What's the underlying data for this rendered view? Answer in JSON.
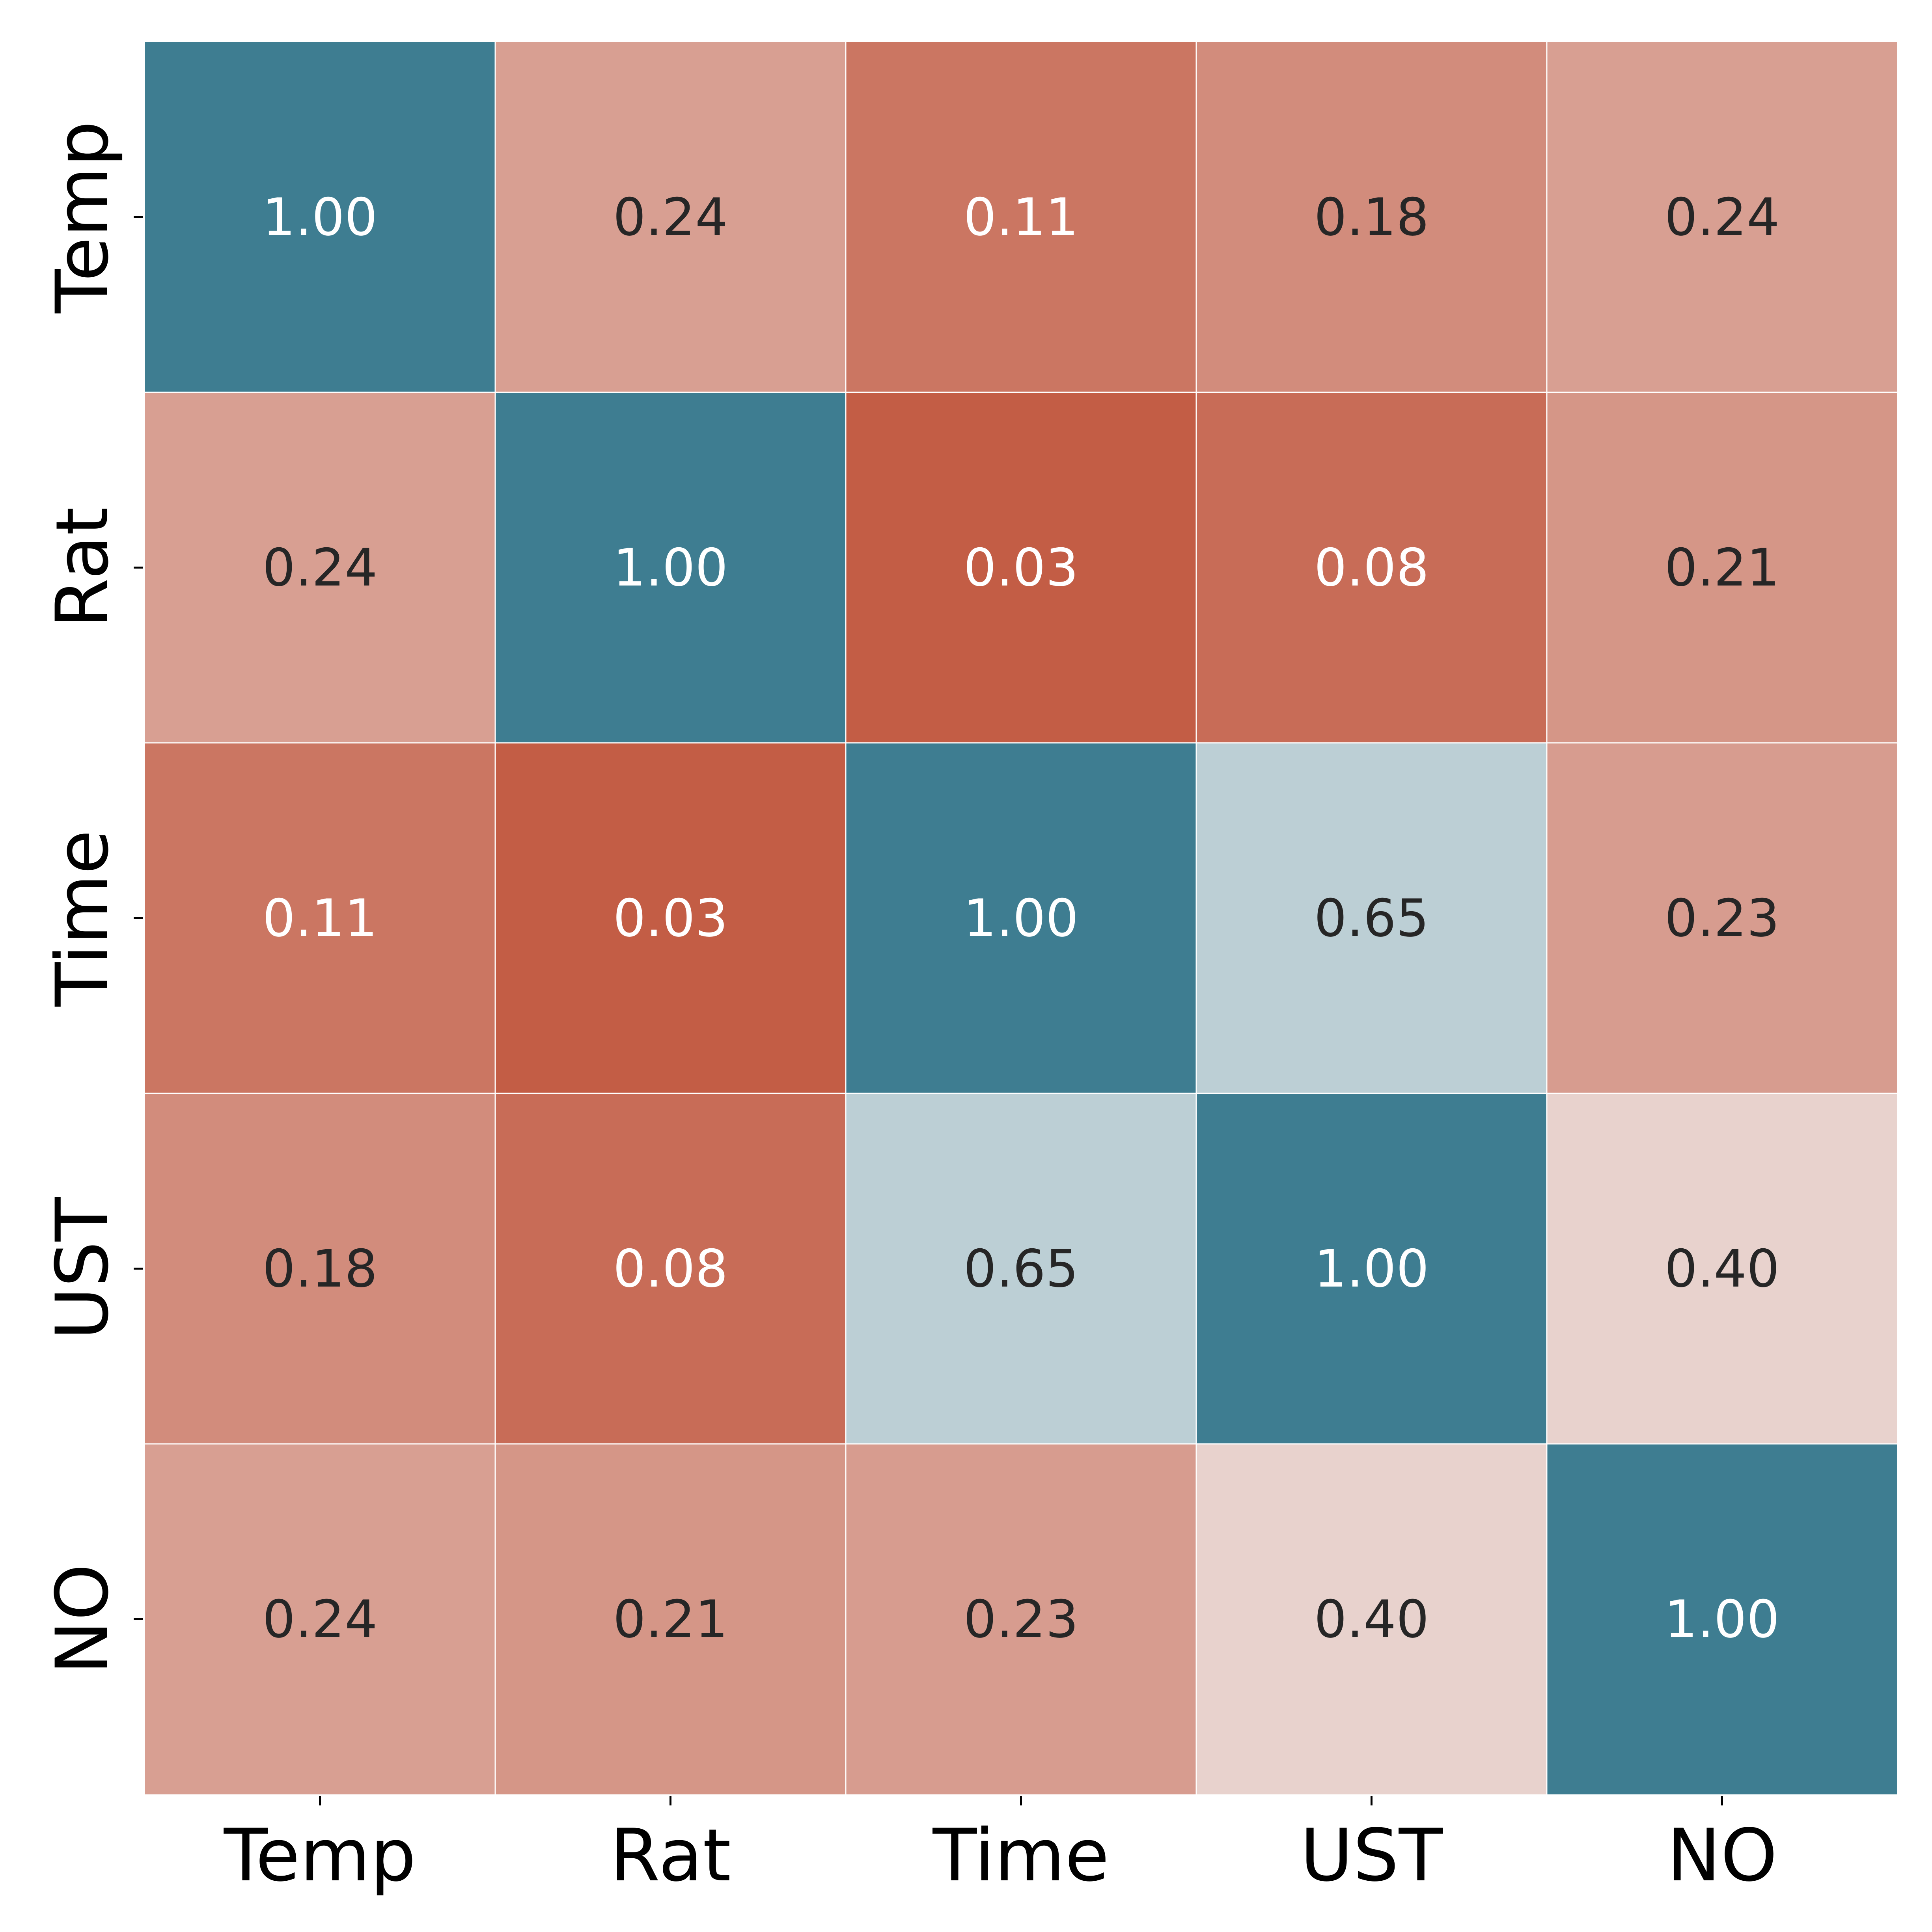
{
  "chart_data": {
    "type": "heatmap",
    "title": "",
    "xlabel": "",
    "ylabel": "",
    "x_categories": [
      "Temp",
      "Rat",
      "Time",
      "UST",
      "NO"
    ],
    "y_categories": [
      "Temp",
      "Rat",
      "Time",
      "UST",
      "NO"
    ],
    "values": [
      [
        1.0,
        0.24,
        0.11,
        0.18,
        0.24
      ],
      [
        0.24,
        1.0,
        0.03,
        0.08,
        0.21
      ],
      [
        0.11,
        0.03,
        1.0,
        0.65,
        0.23
      ],
      [
        0.18,
        0.08,
        0.65,
        1.0,
        0.4
      ],
      [
        0.24,
        0.21,
        0.23,
        0.4,
        1.0
      ]
    ],
    "value_labels": [
      [
        "1.00",
        "0.24",
        "0.11",
        "0.18",
        "0.24"
      ],
      [
        "0.24",
        "1.00",
        "0.03",
        "0.08",
        "0.21"
      ],
      [
        "0.11",
        "0.03",
        "1.00",
        "0.65",
        "0.23"
      ],
      [
        "0.18",
        "0.08",
        "0.65",
        "1.00",
        "0.40"
      ],
      [
        "0.24",
        "0.21",
        "0.23",
        "0.40",
        "1.00"
      ]
    ],
    "colormap": {
      "type": "diverging",
      "low_color": "#c0533a",
      "mid_color": "#f2f2f2",
      "high_color": "#3e7d91",
      "vmin": 0.0,
      "center": 0.5,
      "vmax": 1.0
    },
    "annotation_colors": {
      "on_dark": "#ffffff",
      "on_light": "#262626"
    },
    "grid_line_color": "#ffffff",
    "colorbar": false,
    "legend": "none"
  }
}
